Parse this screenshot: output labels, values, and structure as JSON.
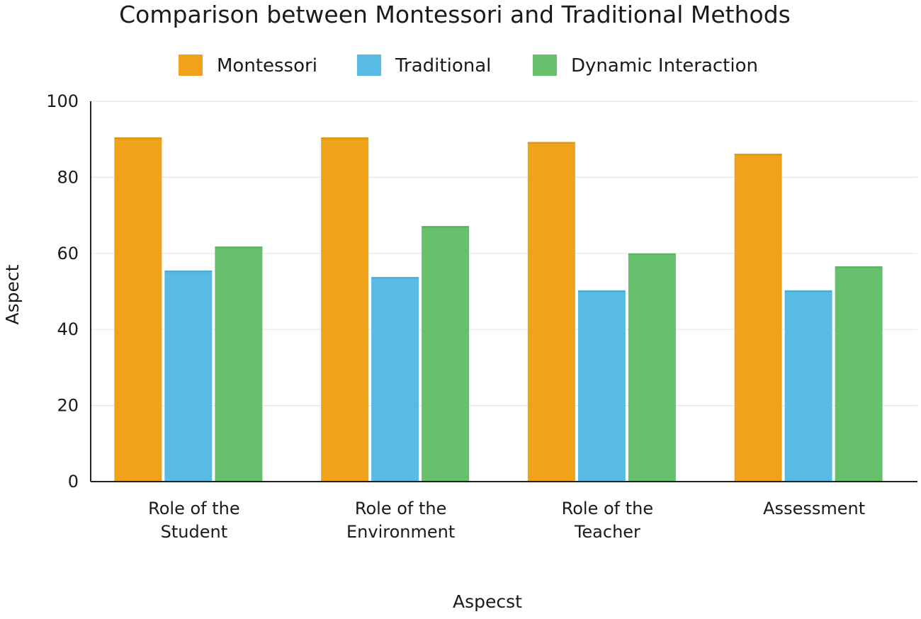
{
  "chart_data": {
    "type": "bar",
    "title": "Comparison between Montessori and Traditional Methods",
    "xlabel": "Aspecst",
    "ylabel": "Aspect",
    "categories": [
      [
        "Role of the",
        "Student"
      ],
      [
        "Role of the",
        "Environment"
      ],
      [
        "Role of the",
        "Teacher"
      ],
      [
        "Assessment"
      ]
    ],
    "series": [
      {
        "name": "Montessori",
        "color": "#F0A31A",
        "values": [
          90.5,
          90.5,
          89.3,
          86.2
        ]
      },
      {
        "name": "Traditional",
        "color": "#58BBE3",
        "values": [
          55.5,
          53.8,
          50.3,
          50.3
        ]
      },
      {
        "name": "Dynamic Interaction",
        "color": "#67C16C",
        "values": [
          61.8,
          67.2,
          60.0,
          56.6
        ]
      }
    ],
    "ylim": [
      0,
      100
    ],
    "yticks": [
      0,
      20,
      40,
      60,
      80,
      100
    ],
    "grid": true,
    "legend_position": "top-center"
  }
}
